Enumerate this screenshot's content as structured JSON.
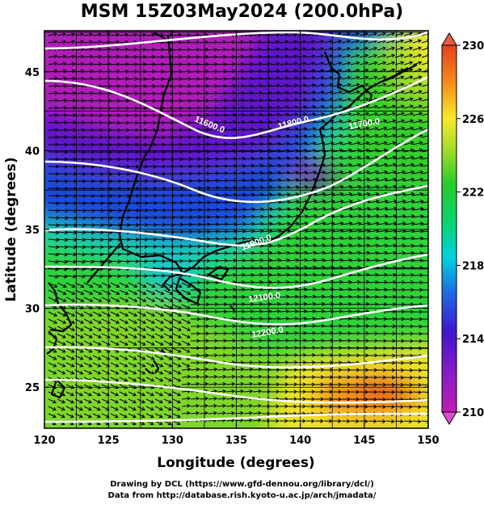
{
  "title": "MSM 15Z03May2024 (200.0hPa)",
  "axes": {
    "x_label": "Longitude (degrees)",
    "y_label": "Latitude  (degrees)",
    "x_ticks": [
      "120",
      "125",
      "130",
      "135",
      "140",
      "145",
      "150"
    ],
    "y_ticks": [
      "25",
      "30",
      "35",
      "40",
      "45"
    ],
    "x_range": [
      120,
      150
    ],
    "y_range": [
      22.4,
      47.6
    ]
  },
  "colorbar": {
    "min": 210,
    "max": 230,
    "ticks": [
      "230",
      "226",
      "222",
      "218",
      "214",
      "210"
    ]
  },
  "contour_labels": [
    "11600.0",
    "11800.0",
    "11700.0",
    "11900.0",
    "12100.0",
    "12200.0"
  ],
  "credits": {
    "line1": "Drawing by DCL (https://www.gfd-dennou.org/library/dcl/)",
    "line2": "Data from http://database.rish.kyoto-u.ac.jp/arch/jmadata/"
  },
  "chart_data": {
    "type": "heatmap",
    "variable": "temperature (shaded), geopotential height (contours), wind (vectors)",
    "x_range": [
      120,
      150
    ],
    "y_range": [
      22.4,
      47.6
    ],
    "color_range": [
      210,
      230
    ],
    "contour_values": [
      11600,
      11700,
      11800,
      11900,
      12100,
      12200
    ],
    "grid": true
  },
  "colors": {
    "scale": [
      "#c21ab4",
      "#3f16cf",
      "#00d2e0",
      "#26cc2a",
      "#f7e92a",
      "#f58a1b",
      "#e8401c"
    ],
    "contour": "#ffffff",
    "vectors": "#000000"
  }
}
